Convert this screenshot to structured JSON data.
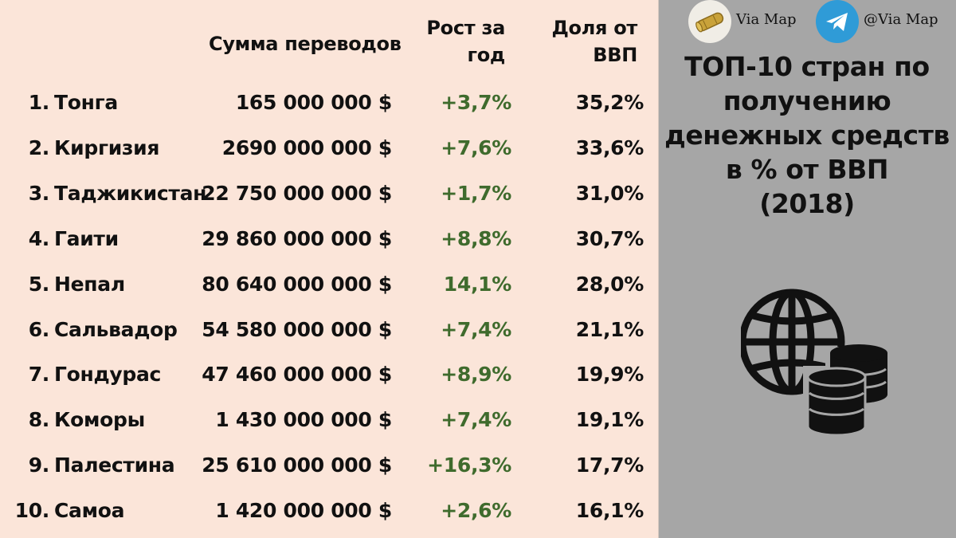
{
  "headers": {
    "sum": "Сумма переводов",
    "growth_line1": "Рост за",
    "growth_line2": "год",
    "share_line1": "Доля от",
    "share_line2": "ВВП"
  },
  "title_lines": [
    "ТОП-10 стран по",
    "получению",
    "денежных средств",
    "в % от ВВП",
    "(2018)"
  ],
  "footer": {
    "via_label": "Via Map",
    "telegram_label": "@Via Map"
  },
  "icons": [
    "globe-icon",
    "coin-stack-icon",
    "scroll-icon",
    "telegram-icon"
  ],
  "colors": {
    "panel_bg": "#fbe5d9",
    "side_bg": "#a6a6a6",
    "growth_text": "#3f6b2d",
    "telegram": "#2f9bd7"
  },
  "chart_data": {
    "type": "table",
    "columns": [
      "",
      "Сумма переводов",
      "Рост за год",
      "Доля от ВВП"
    ],
    "rows": [
      {
        "rank": "1.",
        "country": "Тонга",
        "sum": "165 000 000 $",
        "growth": "+3,7%",
        "share": "35,2%"
      },
      {
        "rank": "2.",
        "country": "Киргизия",
        "sum": "2690 000 000 $",
        "growth": "+7,6%",
        "share": "33,6%"
      },
      {
        "rank": "3.",
        "country": "Таджикистан",
        "sum": "22 750 000 000 $",
        "growth": "+1,7%",
        "share": "31,0%"
      },
      {
        "rank": "4.",
        "country": "Гаити",
        "sum": "29 860 000 000 $",
        "growth": "+8,8%",
        "share": "30,7%"
      },
      {
        "rank": "5.",
        "country": "Непал",
        "sum": "80 640 000 000 $",
        "growth": "14,1%",
        "share": "28,0%"
      },
      {
        "rank": "6.",
        "country": "Сальвадор",
        "sum": "54 580 000 000 $",
        "growth": "+7,4%",
        "share": "21,1%"
      },
      {
        "rank": "7.",
        "country": "Гондурас",
        "sum": "47 460 000 000 $",
        "growth": "+8,9%",
        "share": "19,9%"
      },
      {
        "rank": "8.",
        "country": "Коморы",
        "sum": "1 430 000 000 $",
        "growth": "+7,4%",
        "share": "19,1%"
      },
      {
        "rank": "9.",
        "country": "Палестина",
        "sum": "25 610 000 000 $",
        "growth": "+16,3%",
        "share": "17,7%"
      },
      {
        "rank": "10.",
        "country": "Самоа",
        "sum": "1 420 000 000 $",
        "growth": "+2,6%",
        "share": "16,1%"
      }
    ]
  }
}
